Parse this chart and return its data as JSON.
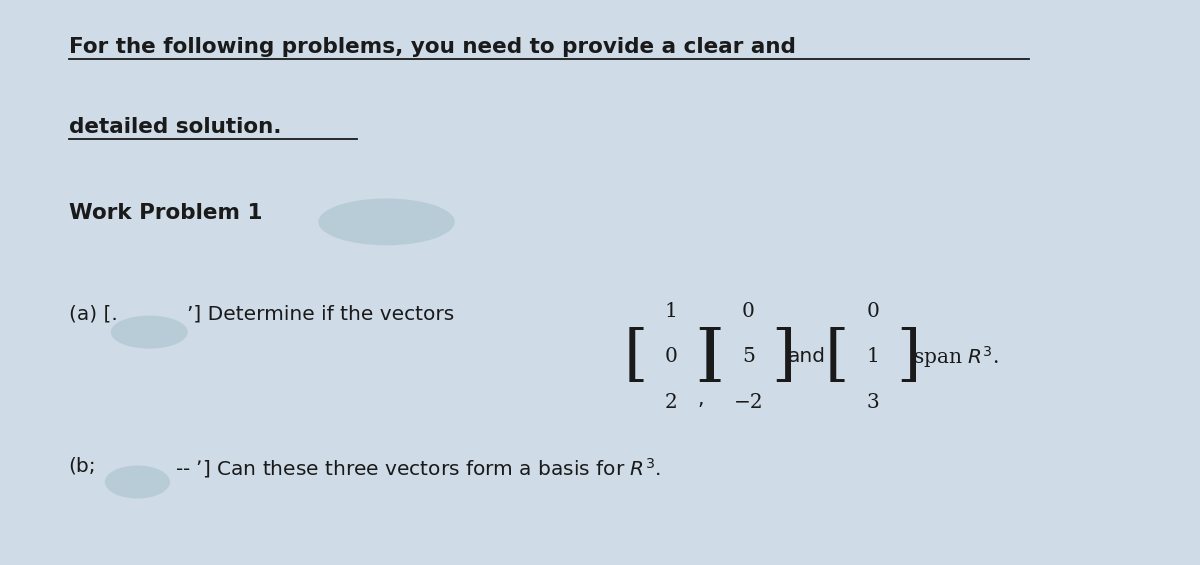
{
  "bg_color": "#cfdce8",
  "text_color": "#1a1a1a",
  "fig_width": 12.0,
  "fig_height": 5.65,
  "heading_line1": "For the following problems, you need to provide a clear and",
  "heading_line2": "detailed solution.",
  "subheading": "Work Problem 1",
  "vec1": [
    "1",
    "0",
    "2"
  ],
  "vec2": [
    "0",
    "5",
    "−2"
  ],
  "vec3": [
    "0",
    "1",
    "3"
  ]
}
